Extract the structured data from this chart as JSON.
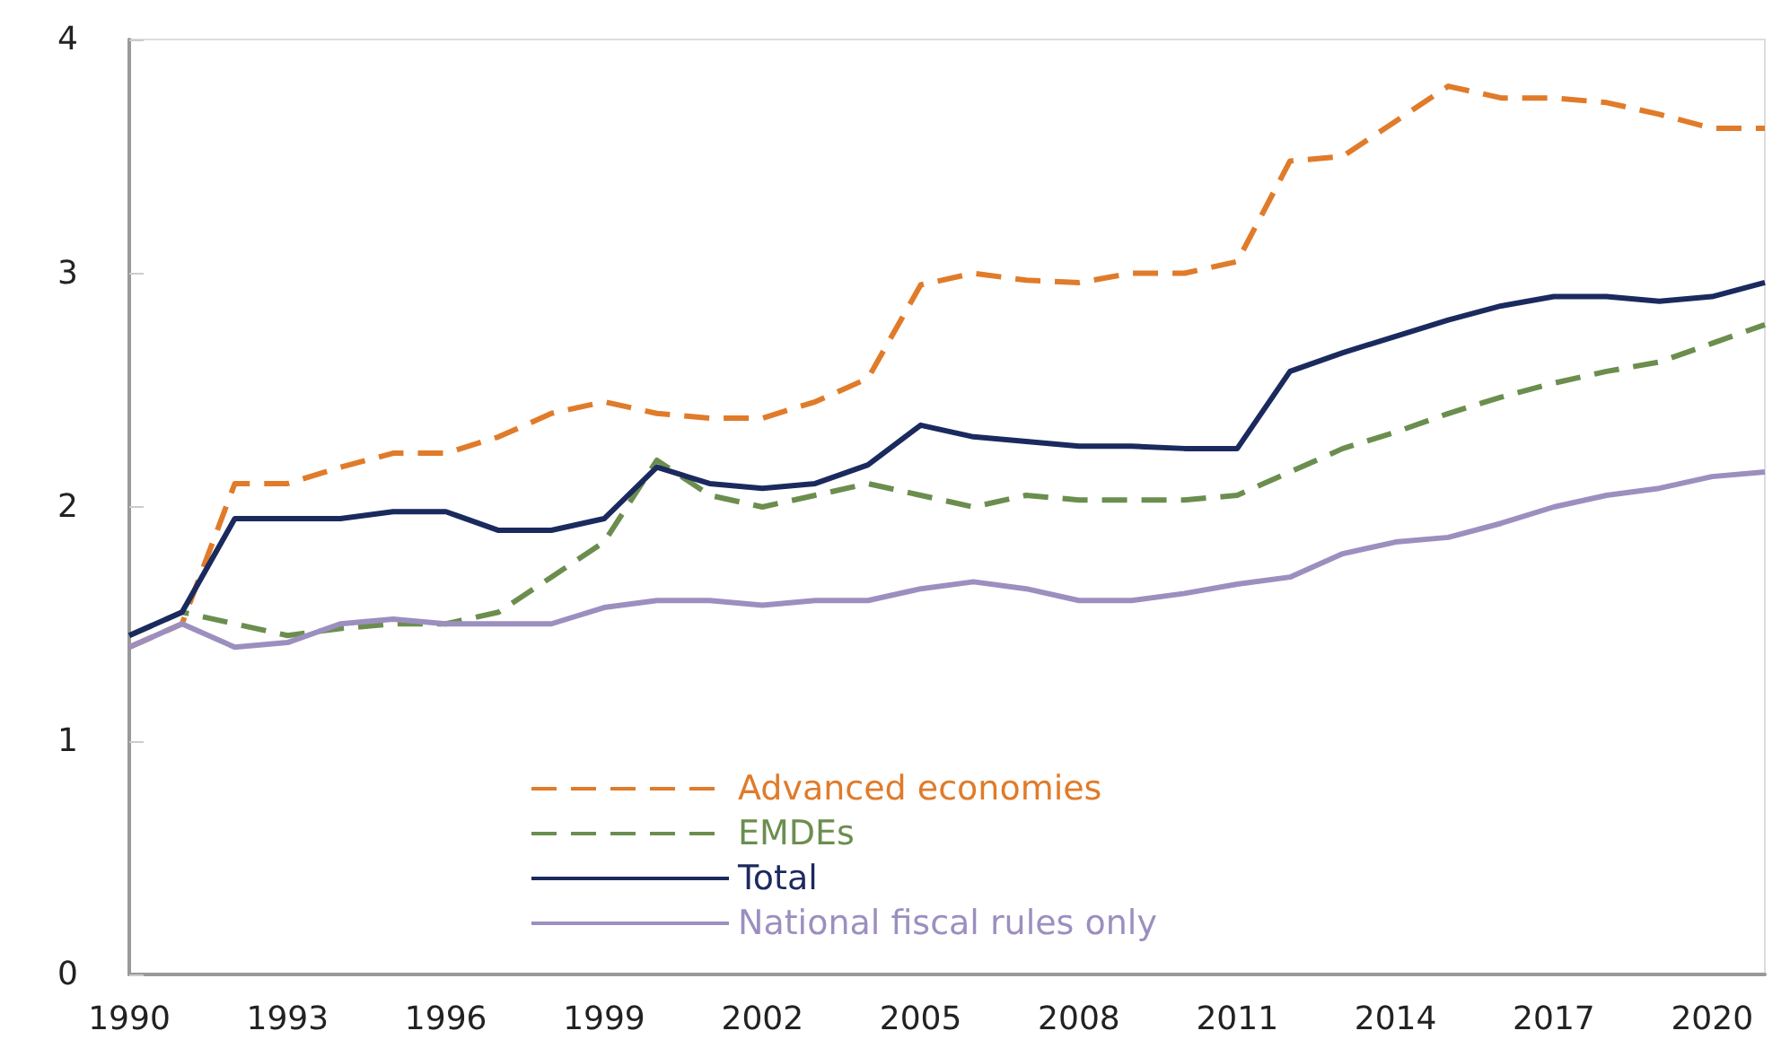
{
  "chart_data": {
    "type": "line",
    "categories": [
      "1990",
      null,
      null,
      "1993",
      null,
      null,
      "1996",
      null,
      null,
      "1999",
      null,
      null,
      "2002",
      null,
      null,
      "2005",
      null,
      null,
      "2008",
      null,
      null,
      "2011",
      null,
      null,
      "2014",
      null,
      null,
      "2017",
      null,
      null,
      "2020",
      null
    ],
    "series": [
      {
        "name": "Advanced economies",
        "color": "#e07b2a",
        "line_style": "dashed",
        "values": [
          1.4,
          1.5,
          2.1,
          2.1,
          2.17,
          2.23,
          2.23,
          2.3,
          2.4,
          2.45,
          2.4,
          2.38,
          2.38,
          2.45,
          2.55,
          2.95,
          3.0,
          2.97,
          2.96,
          3.0,
          3.0,
          3.05,
          3.48,
          3.5,
          3.65,
          3.8,
          3.75,
          3.75,
          3.73,
          3.68,
          3.62,
          3.62
        ]
      },
      {
        "name": "EMDEs",
        "color": "#6b8e4e",
        "line_style": "dashed",
        "values": [
          1.45,
          1.55,
          1.5,
          1.45,
          1.48,
          1.5,
          1.5,
          1.55,
          1.7,
          1.85,
          2.2,
          2.05,
          2.0,
          2.05,
          2.1,
          2.05,
          2.0,
          2.05,
          2.03,
          2.03,
          2.03,
          2.05,
          2.15,
          2.25,
          2.32,
          2.4,
          2.47,
          2.53,
          2.58,
          2.62,
          2.7,
          2.78
        ]
      },
      {
        "name": "Total",
        "color": "#1b2a5e",
        "line_style": "solid",
        "values": [
          1.45,
          1.55,
          1.95,
          1.95,
          1.95,
          1.98,
          1.98,
          1.9,
          1.9,
          1.95,
          2.17,
          2.1,
          2.08,
          2.1,
          2.18,
          2.35,
          2.3,
          2.28,
          2.26,
          2.26,
          2.25,
          2.25,
          2.58,
          2.66,
          2.73,
          2.8,
          2.86,
          2.9,
          2.9,
          2.88,
          2.9,
          2.96
        ]
      },
      {
        "name": "National fiscal rules only",
        "color": "#9c8fbf",
        "line_style": "solid",
        "values": [
          1.4,
          1.5,
          1.4,
          1.42,
          1.5,
          1.52,
          1.5,
          1.5,
          1.5,
          1.57,
          1.6,
          1.6,
          1.58,
          1.6,
          1.6,
          1.65,
          1.68,
          1.65,
          1.6,
          1.6,
          1.63,
          1.67,
          1.7,
          1.8,
          1.85,
          1.87,
          1.93,
          2.0,
          2.05,
          2.08,
          2.13,
          2.15
        ]
      }
    ],
    "ylim": [
      0,
      4
    ],
    "yticks": [
      0,
      1,
      2,
      3,
      4
    ],
    "grid": false,
    "legend": "bottom",
    "marker": "none"
  }
}
